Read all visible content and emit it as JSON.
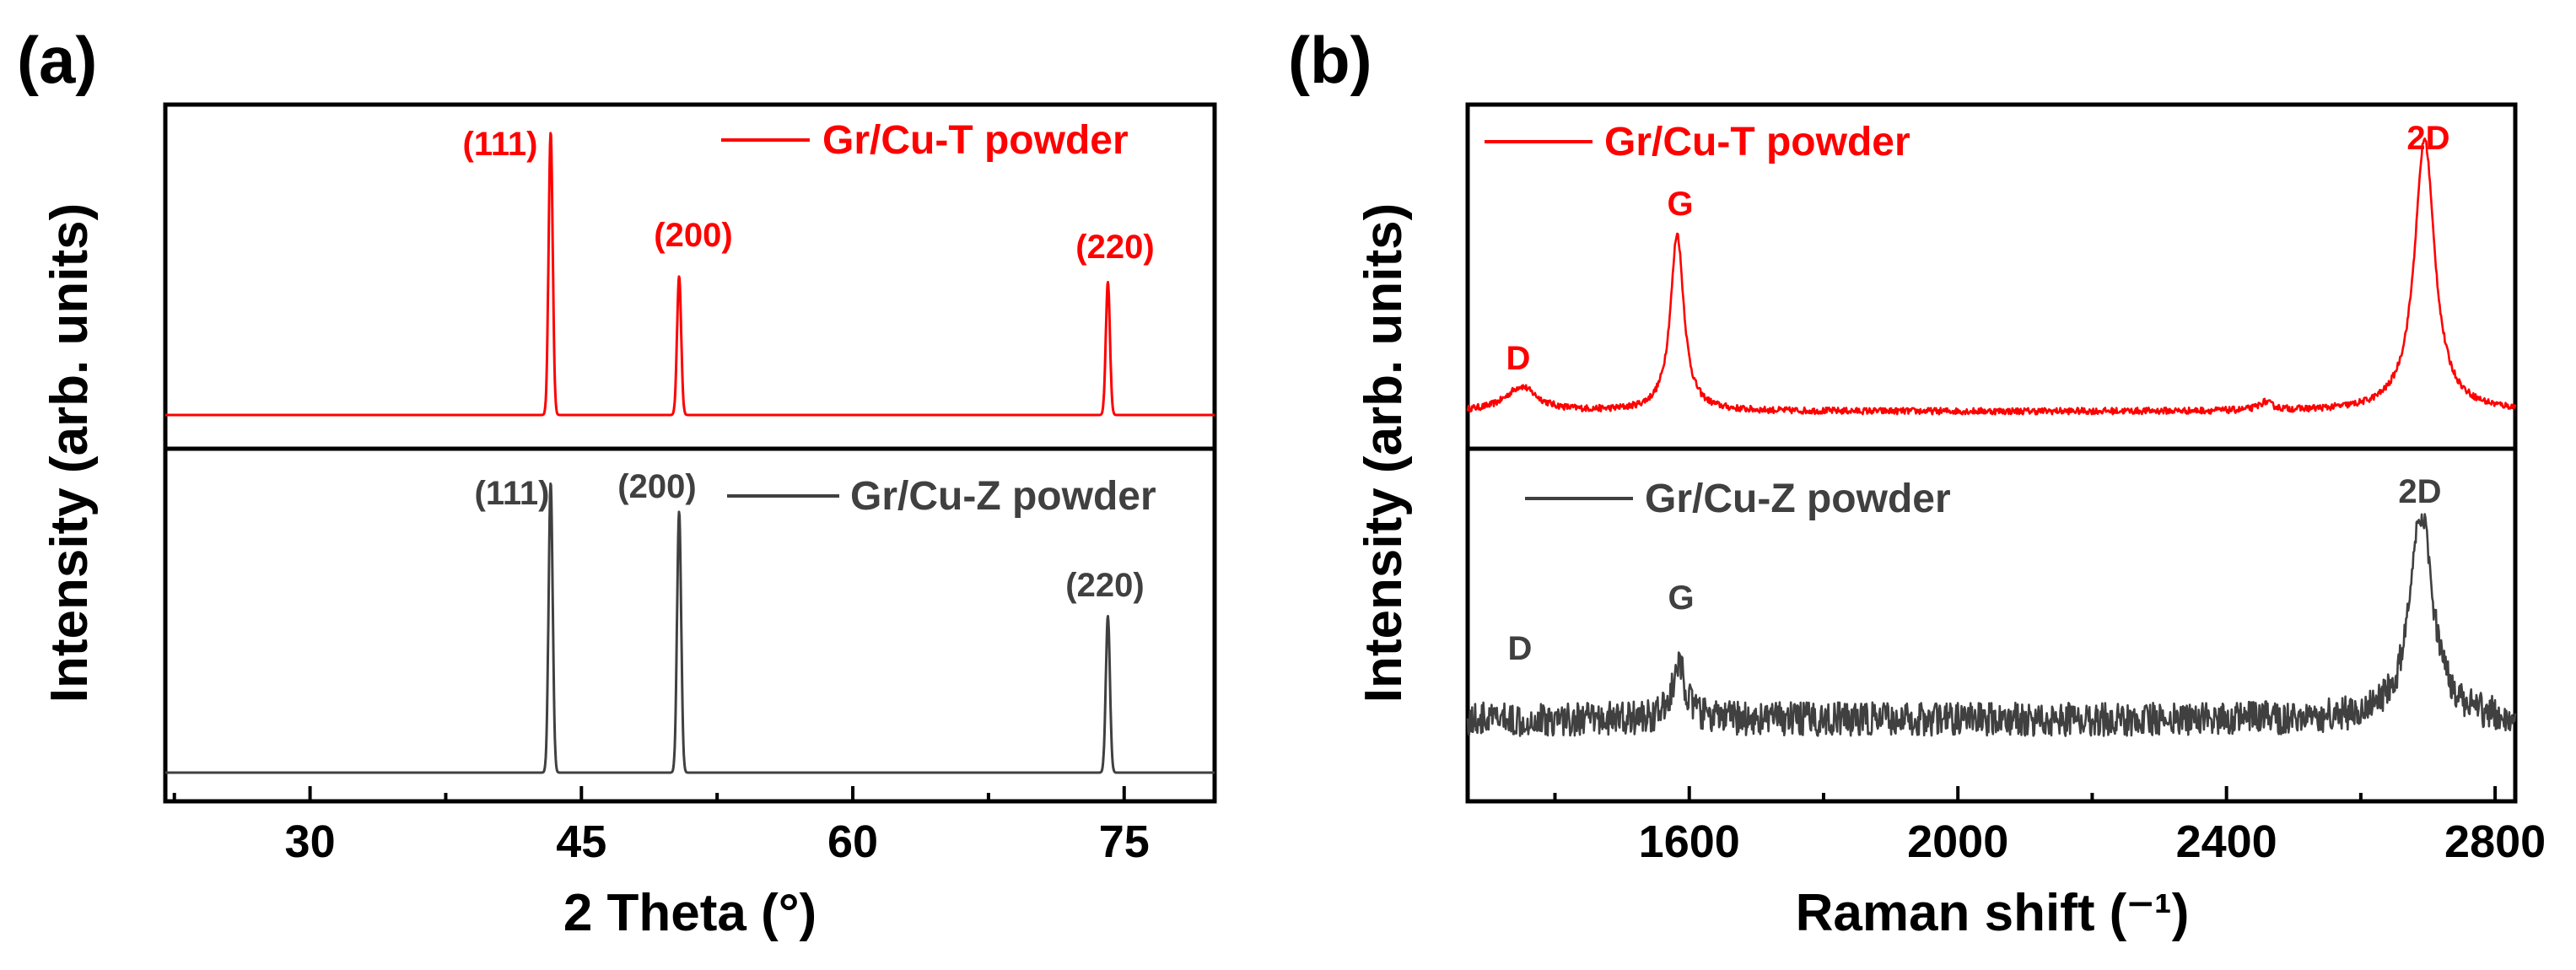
{
  "chart_data": [
    {
      "type": "line",
      "panel_label": "(a)",
      "xlabel": "2 Theta  (°)",
      "ylabel": "Intensity (arb. units)",
      "xlim": [
        22,
        80
      ],
      "xticks": [
        30,
        45,
        60,
        75
      ],
      "xtick_labels": [
        "30",
        "45",
        "60",
        "75"
      ],
      "series": [
        {
          "name": "Gr/Cu-T powder",
          "color": "#ff0000",
          "baseline": 0,
          "ylim": [
            0,
            1.08
          ],
          "peaks": [
            {
              "x": 43.3,
              "height": 1.0,
              "label": "(111)"
            },
            {
              "x": 50.4,
              "height": 0.49,
              "label": "(200)"
            },
            {
              "x": 74.1,
              "height": 0.47,
              "label": "(220)"
            }
          ]
        },
        {
          "name": "Gr/Cu-Z powder",
          "color": "#404040",
          "baseline": 0,
          "ylim": [
            0,
            1.1
          ],
          "peaks": [
            {
              "x": 43.3,
              "height": 1.0,
              "label": "(111)"
            },
            {
              "x": 50.4,
              "height": 0.9,
              "label": "(200)"
            },
            {
              "x": 74.1,
              "height": 0.54,
              "label": "(220)"
            }
          ]
        }
      ]
    },
    {
      "type": "line",
      "panel_label": "(b)",
      "xlabel": "Raman shift (⁻¹)",
      "ylabel": "Intensity (arb. units)",
      "xlim": [
        1270,
        2830
      ],
      "xticks": [
        1600,
        2000,
        2400,
        2800
      ],
      "xtick_labels": [
        "1600",
        "2000",
        "2400",
        "2800"
      ],
      "series": [
        {
          "name": "Gr/Cu-T powder",
          "color": "#ff0000",
          "baseline": 0.05,
          "ylim": [
            0,
            1.12
          ],
          "noise": 0.012,
          "peaks": [
            {
              "x": 1350,
              "height": 0.09,
              "width": 28,
              "label": "D"
            },
            {
              "x": 1582,
              "height": 0.65,
              "width": 12,
              "label": "G"
            },
            {
              "x": 2458,
              "height": 0.03,
              "width": 12,
              "label": ""
            },
            {
              "x": 2695,
              "height": 1.0,
              "width": 18,
              "label": "2D"
            }
          ]
        },
        {
          "name": "Gr/Cu-Z powder",
          "color": "#404040",
          "baseline": 0.1,
          "ylim": [
            -0.1,
            1.12
          ],
          "noise": 0.07,
          "peaks": [
            {
              "x": 1350,
              "height": 0.0,
              "width": 25,
              "label": "D"
            },
            {
              "x": 1585,
              "height": 0.22,
              "width": 12,
              "label": "G"
            },
            {
              "x": 2690,
              "height": 0.85,
              "width": 20,
              "label": "2D"
            }
          ]
        }
      ]
    }
  ]
}
